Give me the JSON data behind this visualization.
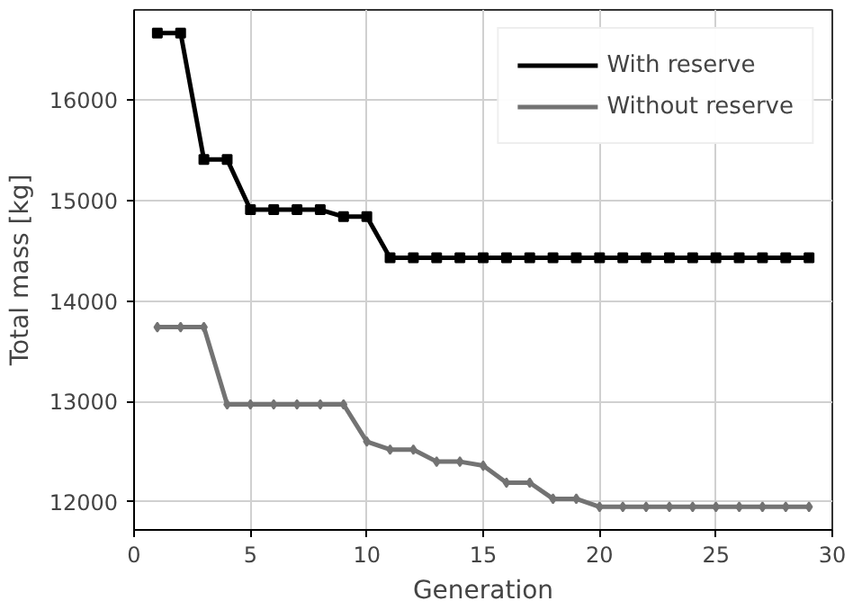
{
  "chart_data": {
    "type": "line",
    "xlabel": "Generation",
    "ylabel": "Total mass [kg]",
    "x": [
      1,
      2,
      3,
      4,
      5,
      6,
      7,
      8,
      9,
      10,
      11,
      12,
      13,
      14,
      15,
      16,
      17,
      18,
      19,
      20,
      21,
      22,
      23,
      24,
      25,
      26,
      27,
      28,
      29
    ],
    "series": [
      {
        "name": "With reserve",
        "color": "#000000",
        "marker": "square",
        "values": [
          16670,
          16670,
          15410,
          15410,
          14910,
          14910,
          14910,
          14910,
          14840,
          14840,
          14430,
          14430,
          14430,
          14430,
          14430,
          14430,
          14430,
          14430,
          14430,
          14430,
          14430,
          14430,
          14430,
          14430,
          14430,
          14430,
          14430,
          14430,
          14430
        ]
      },
      {
        "name": "Without reserve",
        "color": "#737373",
        "marker": "diamond",
        "values": [
          13740,
          13740,
          13740,
          12970,
          12970,
          12970,
          12970,
          12970,
          12970,
          12600,
          12520,
          12520,
          12400,
          12400,
          12360,
          12190,
          12190,
          12030,
          12030,
          11950,
          11950,
          11950,
          11950,
          11950,
          11950,
          11950,
          11950,
          11950,
          11950
        ]
      }
    ],
    "xlim": [
      0,
      30
    ],
    "ylim": [
      11720,
      16900
    ],
    "xticks": [
      0,
      5,
      10,
      15,
      20,
      25,
      30
    ],
    "yticks": [
      12000,
      13000,
      14000,
      15000,
      16000
    ],
    "grid": true,
    "legend": "top right",
    "line_style": "solid"
  }
}
